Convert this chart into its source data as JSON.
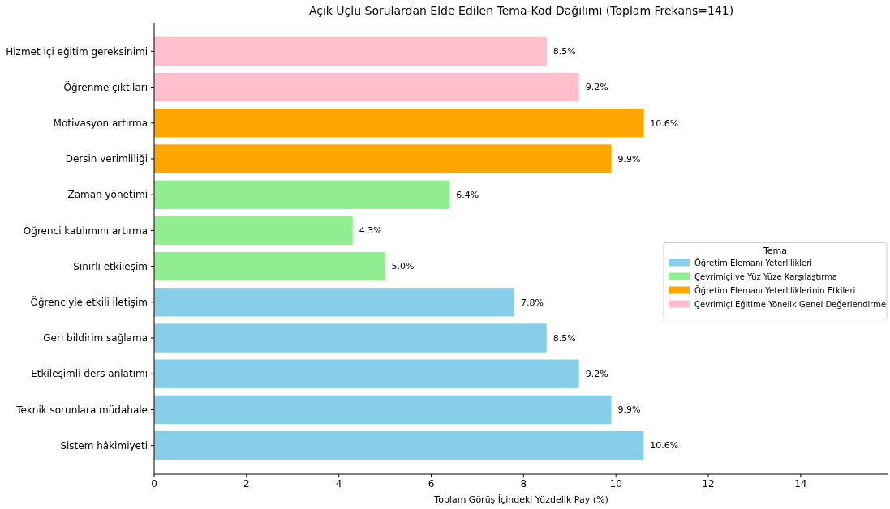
{
  "chart_data": {
    "type": "bar",
    "orientation": "horizontal",
    "title": "Açık Uçlu Sorulardan Elde Edilen Tema-Kod Dağılımı (Toplam Frekans=141)",
    "xlabel": "Toplam Görüş İçindeki Yüzdelik Pay (%)",
    "legend_title": "Tema",
    "legend": "right",
    "grid": false,
    "categories": [
      "Hizmet içi eğitim gereksinimi",
      "Öğrenme çıktıları",
      "Motivasyon artırma",
      "Dersin verimliliği",
      "Zaman yönetimi",
      "Öğrenci katılımını artırma",
      "Sınırlı etkileşim",
      "Öğrenciyle etkili iletişim",
      "Geri bildirim sağlama",
      "Etkileşimli ders anlatımı",
      "Teknik sorunlara müdahale",
      "Sistem hâkimiyeti"
    ],
    "xlim": [
      0,
      15.9
    ],
    "xticks": [
      0,
      2,
      4,
      6,
      8,
      10,
      12,
      14
    ],
    "series": [
      {
        "name": "Öğretim Elemanı Yeterlilikleri",
        "color": "#87ceeb",
        "values": [
          null,
          null,
          null,
          null,
          null,
          null,
          null,
          7.8,
          8.5,
          9.2,
          9.9,
          10.6
        ],
        "value_labels": [
          null,
          null,
          null,
          null,
          null,
          null,
          null,
          "7.8%",
          "8.5%",
          "9.2%",
          "9.9%",
          "10.6%"
        ]
      },
      {
        "name": "Çevrimiçi ve Yüz Yüze Karşılaştırma",
        "color": "#90ee90",
        "values": [
          null,
          null,
          null,
          null,
          6.4,
          4.3,
          5.0,
          null,
          null,
          null,
          null,
          null
        ],
        "value_labels": [
          null,
          null,
          null,
          null,
          "6.4%",
          "4.3%",
          "5.0%",
          null,
          null,
          null,
          null,
          null
        ]
      },
      {
        "name": "Öğretim Elemanı Yeterliliklerinin Etkileri",
        "color": "#ffa500",
        "values": [
          null,
          null,
          10.6,
          9.9,
          null,
          null,
          null,
          null,
          null,
          null,
          null,
          null
        ],
        "value_labels": [
          null,
          null,
          "10.6%",
          "9.9%",
          null,
          null,
          null,
          null,
          null,
          null,
          null,
          null
        ]
      },
      {
        "name": "Çevrimiçi Eğitime Yönelik Genel Değerlendirme",
        "color": "#ffc0cb",
        "values": [
          8.5,
          9.2,
          null,
          null,
          null,
          null,
          null,
          null,
          null,
          null,
          null,
          null
        ],
        "value_labels": [
          "8.5%",
          "9.2%",
          null,
          null,
          null,
          null,
          null,
          null,
          null,
          null,
          null,
          null
        ]
      }
    ]
  }
}
